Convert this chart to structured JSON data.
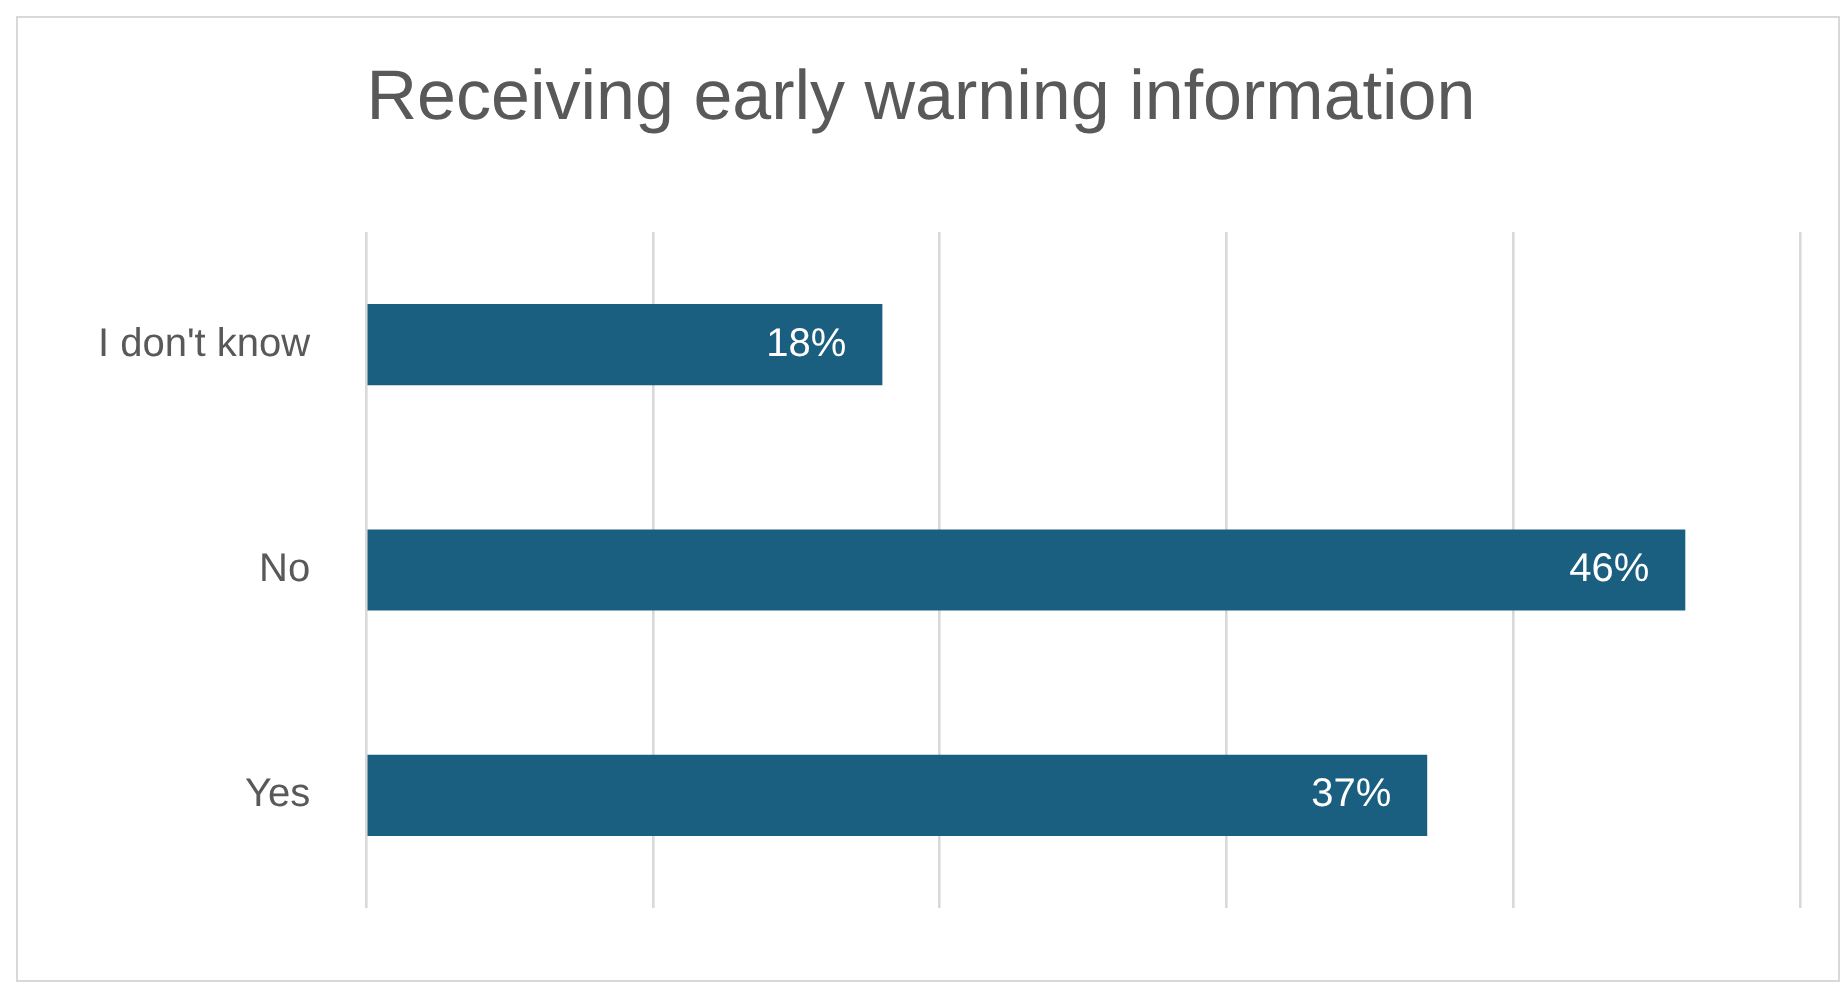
{
  "chart_data": {
    "type": "bar",
    "orientation": "horizontal",
    "title": "Receiving early warning information",
    "categories": [
      "I don't know",
      "No",
      "Yes"
    ],
    "values": [
      18,
      46,
      37
    ],
    "value_labels": [
      "18%",
      "46%",
      "37%"
    ],
    "color": "#1a5e80",
    "xlim": [
      0,
      50
    ],
    "xticks": [
      {
        "value": 0,
        "label": null
      },
      {
        "value": 10,
        "label": null
      },
      {
        "value": 20,
        "label": null
      },
      {
        "value": 30,
        "label": null
      },
      {
        "value": 40,
        "label": null
      },
      {
        "value": 50,
        "label": null
      }
    ],
    "grid": "x",
    "legend": false,
    "tick_labels": "y"
  }
}
